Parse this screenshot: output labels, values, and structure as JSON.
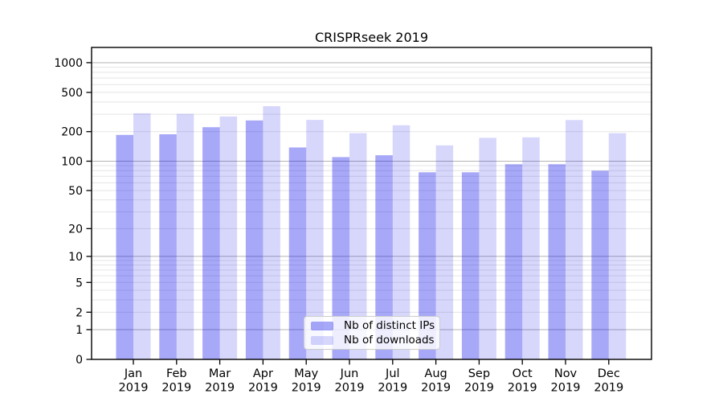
{
  "title": "CRISPRseek 2019",
  "chart_data": {
    "type": "bar",
    "title": "CRISPRseek 2019",
    "categories": [
      "Jan",
      "Feb",
      "Mar",
      "Apr",
      "May",
      "Jun",
      "Jul",
      "Aug",
      "Sep",
      "Oct",
      "Nov",
      "Dec"
    ],
    "category_year": "2019",
    "series": [
      {
        "name": "Nb of distinct IPs",
        "color": "rgba(0,0,235,0.34)",
        "values": [
          185,
          188,
          222,
          260,
          138,
          110,
          115,
          77,
          77,
          93,
          93,
          80
        ]
      },
      {
        "name": "Nb of downloads",
        "color": "rgba(0,0,235,0.155)",
        "values": [
          307,
          303,
          285,
          362,
          263,
          193,
          232,
          145,
          173,
          175,
          262,
          193
        ]
      }
    ],
    "y_scale": "log10(value+1)",
    "ylim": [
      0,
      1430
    ],
    "y_ticks": [
      1000,
      500,
      200,
      100,
      50,
      20,
      10,
      5,
      2,
      1,
      0
    ],
    "grid": {
      "major": [
        1000,
        100,
        10,
        1
      ],
      "minor": [
        900,
        800,
        700,
        600,
        500,
        400,
        300,
        200,
        90,
        80,
        70,
        60,
        50,
        40,
        30,
        20,
        9,
        8,
        7,
        6,
        5,
        4,
        3,
        2
      ]
    },
    "colors": {
      "grid_major": "#b4b4b4",
      "grid_minor": "#e5e5e5",
      "axis": "#000000",
      "tick_label": "#000000"
    },
    "legend_position": "inside-bottom-center"
  }
}
